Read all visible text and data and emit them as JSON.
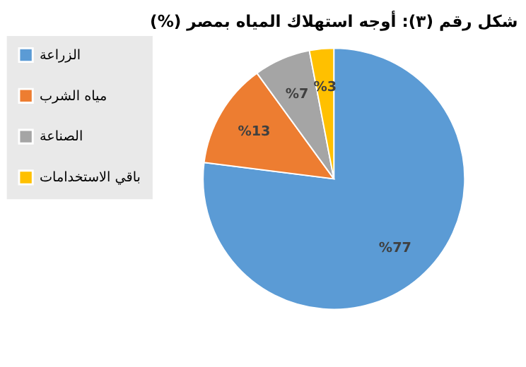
{
  "chart_data": {
    "type": "pie",
    "title": "شكل رقم (٣): أوجه استهلاك المياه بمصر (%)",
    "categories": [
      "الزراعة",
      "مياه الشرب",
      "الصناعة",
      "باقي الاستخدامات"
    ],
    "values": [
      77,
      13,
      7,
      3
    ],
    "colors": [
      "#5b9bd5",
      "#ed7d31",
      "#a5a5a5",
      "#ffc000"
    ],
    "value_labels": [
      "%77",
      "%13",
      "%7",
      "%3"
    ],
    "legend": "left"
  }
}
